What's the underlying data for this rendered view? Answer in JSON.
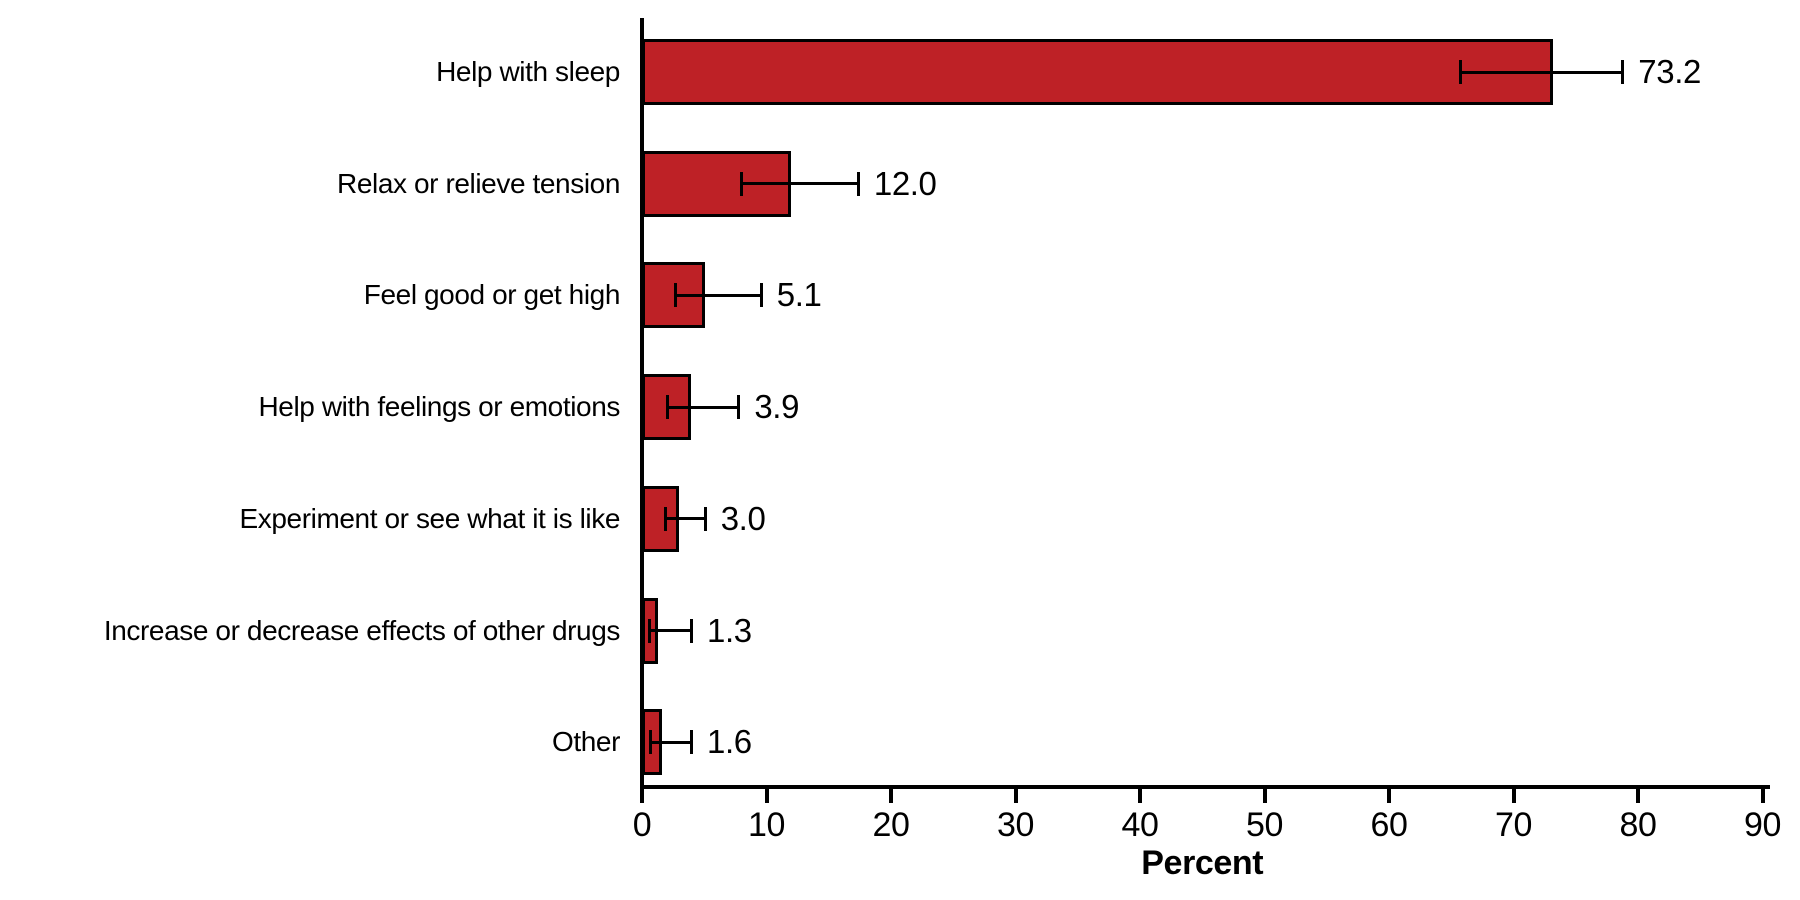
{
  "chart_data": {
    "type": "bar",
    "orientation": "horizontal",
    "xlabel": "Percent",
    "xlim": [
      0,
      90
    ],
    "xticks": [
      0,
      10,
      20,
      30,
      40,
      50,
      60,
      70,
      80,
      90
    ],
    "grid": false,
    "legend": false,
    "bar_color": "#be2126",
    "bar_border_color": "#000000",
    "categories": [
      "Help with sleep",
      "Relax or relieve tension",
      "Feel good or get high",
      "Help with feelings or emotions",
      "Experiment or see what it is like",
      "Increase or decrease effects of other drugs",
      "Other"
    ],
    "values": [
      73.2,
      12.0,
      5.1,
      3.9,
      3.0,
      1.3,
      1.6
    ],
    "value_labels": [
      "73.2",
      "12.0",
      "5.1",
      "3.9",
      "3.0",
      "1.3",
      "1.6"
    ],
    "error_low": [
      65.6,
      7.9,
      2.6,
      1.9,
      1.8,
      0.5,
      0.6
    ],
    "error_high": [
      78.9,
      17.5,
      9.7,
      7.9,
      5.2,
      4.1,
      4.1
    ]
  }
}
